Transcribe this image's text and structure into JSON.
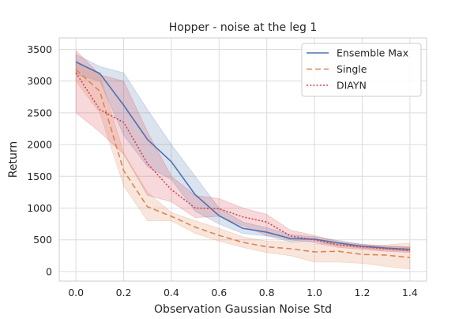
{
  "chart_data": {
    "type": "line",
    "title": "Hopper - noise at the leg 1",
    "xlabel": "Observation Gaussian Noise Std",
    "ylabel": "Return",
    "xlim": [
      -0.07,
      1.47
    ],
    "ylim": [
      -150,
      3680
    ],
    "xticks": [
      0.0,
      0.2,
      0.4,
      0.6,
      0.8,
      1.0,
      1.2,
      1.4
    ],
    "xtick_labels": [
      "0.0",
      "0.2",
      "0.4",
      "0.6",
      "0.8",
      "1.0",
      "1.2",
      "1.4"
    ],
    "yticks": [
      0,
      500,
      1000,
      1500,
      2000,
      2500,
      3000,
      3500
    ],
    "ytick_labels": [
      "0",
      "500",
      "1000",
      "1500",
      "2000",
      "2500",
      "3000",
      "3500"
    ],
    "grid": true,
    "legend_position": "top-right",
    "x": [
      0.0,
      0.1,
      0.2,
      0.3,
      0.4,
      0.5,
      0.6,
      0.7,
      0.8,
      0.9,
      1.0,
      1.1,
      1.2,
      1.3,
      1.4
    ],
    "series": [
      {
        "name": "Ensemble Max",
        "color": "#4c72b0",
        "line_style": "solid",
        "values": [
          3300,
          3120,
          2620,
          2080,
          1730,
          1210,
          880,
          680,
          620,
          520,
          510,
          450,
          400,
          370,
          350
        ],
        "lower": [
          3100,
          3000,
          2150,
          1650,
          1450,
          950,
          750,
          600,
          560,
          470,
          470,
          410,
          370,
          340,
          320
        ],
        "upper": [
          3420,
          3230,
          3130,
          2550,
          2000,
          1500,
          1000,
          780,
          690,
          580,
          550,
          490,
          430,
          400,
          380
        ]
      },
      {
        "name": "Single",
        "color": "#dd8452",
        "line_style": "dashed",
        "values": [
          3180,
          2840,
          1590,
          1020,
          870,
          700,
          570,
          460,
          390,
          360,
          310,
          320,
          270,
          260,
          220
        ],
        "lower": [
          3000,
          2500,
          1350,
          800,
          800,
          600,
          480,
          380,
          300,
          250,
          150,
          150,
          130,
          80,
          40
        ],
        "upper": [
          3320,
          3100,
          1870,
          1250,
          930,
          800,
          680,
          550,
          480,
          470,
          430,
          460,
          400,
          420,
          450
        ]
      },
      {
        "name": "DIAYN",
        "color": "#d9434a",
        "line_style": "dotted",
        "values": [
          3130,
          2550,
          2350,
          1700,
          1290,
          1000,
          990,
          860,
          780,
          560,
          500,
          420,
          390,
          360,
          330
        ],
        "lower": [
          2500,
          2200,
          1850,
          1200,
          1100,
          850,
          870,
          720,
          570,
          500,
          450,
          380,
          350,
          320,
          300
        ],
        "upper": [
          3480,
          3100,
          3000,
          2200,
          1500,
          1200,
          1150,
          1000,
          900,
          650,
          570,
          470,
          430,
          400,
          390
        ]
      }
    ]
  }
}
